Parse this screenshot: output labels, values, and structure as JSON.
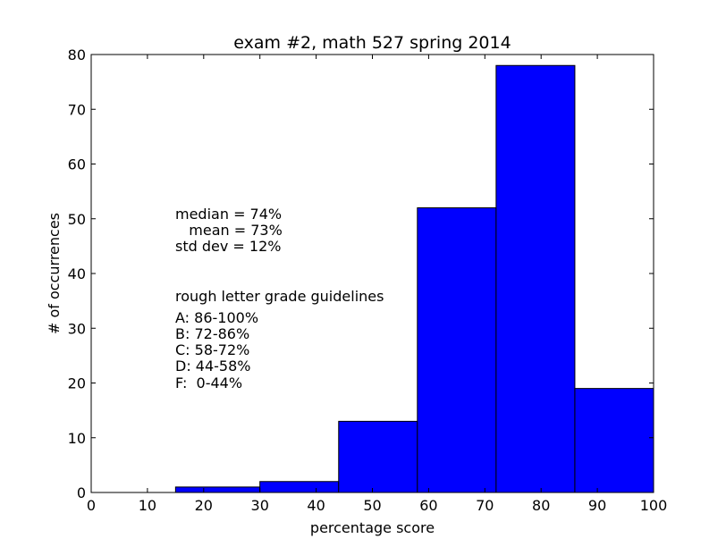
{
  "chart_data": {
    "type": "bar",
    "title": "exam #2, math 527 spring 2014",
    "xlabel": "percentage score",
    "ylabel": "# of occurrences",
    "xlim": [
      0,
      100
    ],
    "ylim": [
      0,
      80
    ],
    "xticks": [
      "0",
      "10",
      "20",
      "30",
      "40",
      "50",
      "60",
      "70",
      "80",
      "90",
      "100"
    ],
    "yticks": [
      "0",
      "10",
      "20",
      "30",
      "40",
      "50",
      "60",
      "70",
      "80"
    ],
    "bins": [
      {
        "start": 0,
        "end": 15,
        "count": 0
      },
      {
        "start": 15,
        "end": 30,
        "count": 1
      },
      {
        "start": 30,
        "end": 44,
        "count": 2
      },
      {
        "start": 44,
        "end": 58,
        "count": 13
      },
      {
        "start": 58,
        "end": 72,
        "count": 52
      },
      {
        "start": 72,
        "end": 86,
        "count": 78
      },
      {
        "start": 86,
        "end": 100,
        "count": 19
      }
    ],
    "bar_color": "#0000ff",
    "grid": false,
    "annotations": {
      "stats": [
        "median = 74%",
        "   mean = 73%",
        "std dev = 12%"
      ],
      "guidelines_title": "rough letter grade guidelines",
      "guidelines": [
        "A: 86-100%",
        "B: 72-86%",
        "C: 58-72%",
        "D: 44-58%",
        "F:  0-44%"
      ]
    }
  }
}
